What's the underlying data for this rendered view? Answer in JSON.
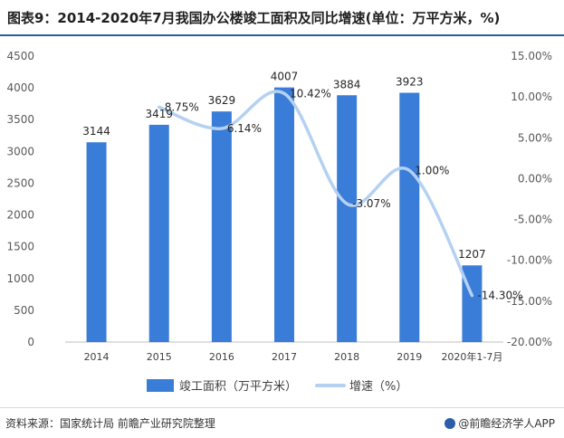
{
  "title": "图表9：2014-2020年7月我国办公楼竣工面积及同比增速(单位：万平方米，%)",
  "chart_data": {
    "type": "bar",
    "categories": [
      "2014",
      "2015",
      "2016",
      "2017",
      "2018",
      "2019",
      "2020年1-7月"
    ],
    "series": [
      {
        "name": "竣工面积（万平方米）",
        "type": "bar",
        "axis": "left",
        "values": [
          3144,
          3419,
          3629,
          4007,
          3884,
          3923,
          1207
        ],
        "labels": [
          "3144",
          "3419",
          "3629",
          "4007",
          "3884",
          "3923",
          "1207"
        ]
      },
      {
        "name": "增速（%）",
        "type": "line",
        "axis": "right",
        "values": [
          null,
          8.75,
          6.14,
          10.42,
          -3.07,
          1.0,
          -14.3
        ],
        "labels": [
          "",
          "8.75%",
          "6.14%",
          "10.42%",
          "-3.07%",
          "1.00%",
          "-14.30%"
        ]
      }
    ],
    "y_left": {
      "lim": [
        0,
        4500
      ],
      "ticks": [
        0,
        500,
        1000,
        1500,
        2000,
        2500,
        3000,
        3500,
        4000,
        4500
      ],
      "tick_labels": [
        "0",
        "500",
        "1000",
        "1500",
        "2000",
        "2500",
        "3000",
        "3500",
        "4000",
        "4500"
      ]
    },
    "y_right": {
      "lim": [
        -20,
        15
      ],
      "ticks": [
        -20,
        -15,
        -10,
        -5,
        0,
        5,
        10,
        15
      ],
      "tick_labels": [
        "-20.00%",
        "-15.00%",
        "-10.00%",
        "-5.00%",
        "0.00%",
        "5.00%",
        "10.00%",
        "15.00%"
      ]
    },
    "grid": false,
    "legend": "bottom",
    "colors": {
      "bar": "#3a7dd8",
      "line": "#b4d1f2"
    }
  },
  "footer": {
    "source": "资料来源：国家统计局 前瞻产业研究院整理",
    "brand": "@前瞻经济学人APP"
  }
}
